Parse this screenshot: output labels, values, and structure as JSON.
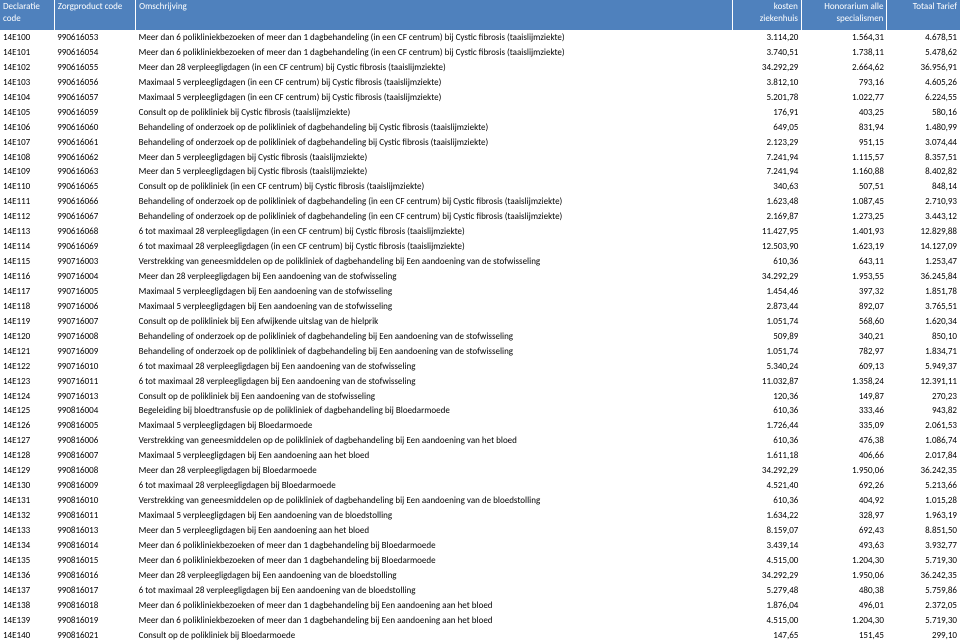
{
  "table": {
    "header_bg": "#4f81bd",
    "header_fg": "#ffffff",
    "columns": [
      {
        "key": "code",
        "label_line1": "Declaratie",
        "label_line2": "code"
      },
      {
        "key": "zp",
        "label_line1": "Zorgproduct code",
        "label_line2": ""
      },
      {
        "key": "desc",
        "label_line1": "Omschrijving",
        "label_line2": ""
      },
      {
        "key": "cost",
        "label_line1": "kosten",
        "label_line2": "ziekenhuis"
      },
      {
        "key": "hon",
        "label_line1": "Honorarium alle",
        "label_line2": "specialismen"
      },
      {
        "key": "tot",
        "label_line1": "Totaal Tarief",
        "label_line2": ""
      }
    ],
    "rows": [
      [
        "14E100",
        "990616053",
        "Meer dan 6 polikliniekbezoeken of meer dan 1 dagbehandeling (in een CF centrum) bij Cystic fibrosis (taaislijmziekte)",
        "3.114,20",
        "1.564,31",
        "4.678,51"
      ],
      [
        "14E101",
        "990616054",
        "Meer dan 6 polikliniekbezoeken of meer dan 1 dagbehandeling (in een CF centrum) bij Cystic fibrosis (taaislijmziekte)",
        "3.740,51",
        "1.738,11",
        "5.478,62"
      ],
      [
        "14E102",
        "990616055",
        "Meer dan 28 verpleegligdagen (in een CF centrum) bij Cystic fibrosis (taaislijmziekte)",
        "34.292,29",
        "2.664,62",
        "36.956,91"
      ],
      [
        "14E103",
        "990616056",
        "Maximaal 5 verpleegligdagen (in een CF centrum) bij Cystic fibrosis (taaislijmziekte)",
        "3.812,10",
        "793,16",
        "4.605,26"
      ],
      [
        "14E104",
        "990616057",
        "Maximaal 5 verpleegligdagen (in een CF centrum) bij Cystic fibrosis (taaislijmziekte)",
        "5.201,78",
        "1.022,77",
        "6.224,55"
      ],
      [
        "14E105",
        "990616059",
        "Consult op de polikliniek bij Cystic fibrosis (taaislijmziekte)",
        "176,91",
        "403,25",
        "580,16"
      ],
      [
        "14E106",
        "990616060",
        "Behandeling of onderzoek op de polikliniek of dagbehandeling bij Cystic fibrosis (taaislijmziekte)",
        "649,05",
        "831,94",
        "1.480,99"
      ],
      [
        "14E107",
        "990616061",
        "Behandeling of onderzoek op de polikliniek of dagbehandeling bij Cystic fibrosis (taaislijmziekte)",
        "2.123,29",
        "951,15",
        "3.074,44"
      ],
      [
        "14E108",
        "990616062",
        "Meer dan 5 verpleegligdagen bij Cystic fibrosis (taaislijmziekte)",
        "7.241,94",
        "1.115,57",
        "8.357,51"
      ],
      [
        "14E109",
        "990616063",
        "Meer dan 5 verpleegligdagen bij Cystic fibrosis (taaislijmziekte)",
        "7.241,94",
        "1.160,88",
        "8.402,82"
      ],
      [
        "14E110",
        "990616065",
        "Consult op de polikliniek (in een CF centrum) bij Cystic fibrosis (taaislijmziekte)",
        "340,63",
        "507,51",
        "848,14"
      ],
      [
        "14E111",
        "990616066",
        "Behandeling of onderzoek op de polikliniek of dagbehandeling (in een CF centrum) bij Cystic fibrosis (taaislijmziekte)",
        "1.623,48",
        "1.087,45",
        "2.710,93"
      ],
      [
        "14E112",
        "990616067",
        "Behandeling of onderzoek op de polikliniek of dagbehandeling (in een CF centrum) bij Cystic fibrosis (taaislijmziekte)",
        "2.169,87",
        "1.273,25",
        "3.443,12"
      ],
      [
        "14E113",
        "990616068",
        "6 tot maximaal 28 verpleegligdagen (in een CF centrum) bij Cystic fibrosis (taaislijmziekte)",
        "11.427,95",
        "1.401,93",
        "12.829,88"
      ],
      [
        "14E114",
        "990616069",
        "6 tot maximaal 28 verpleegligdagen (in een CF centrum) bij Cystic fibrosis (taaislijmziekte)",
        "12.503,90",
        "1.623,19",
        "14.127,09"
      ],
      [
        "14E115",
        "990716003",
        "Verstrekking van geneesmiddelen op de polikliniek of dagbehandeling bij Een aandoening van de stofwisseling",
        "610,36",
        "643,11",
        "1.253,47"
      ],
      [
        "14E116",
        "990716004",
        "Meer dan 28 verpleegligdagen bij Een aandoening van de stofwisseling",
        "34.292,29",
        "1.953,55",
        "36.245,84"
      ],
      [
        "14E117",
        "990716005",
        "Maximaal 5 verpleegligdagen bij Een aandoening van de stofwisseling",
        "1.454,46",
        "397,32",
        "1.851,78"
      ],
      [
        "14E118",
        "990716006",
        "Maximaal 5 verpleegligdagen bij Een aandoening van de stofwisseling",
        "2.873,44",
        "892,07",
        "3.765,51"
      ],
      [
        "14E119",
        "990716007",
        "Consult op de polikliniek bij Een afwijkende uitslag van de hielprik",
        "1.051,74",
        "568,60",
        "1.620,34"
      ],
      [
        "14E120",
        "990716008",
        "Behandeling of onderzoek op de polikliniek of dagbehandeling bij Een aandoening van de stofwisseling",
        "509,89",
        "340,21",
        "850,10"
      ],
      [
        "14E121",
        "990716009",
        "Behandeling of onderzoek op de polikliniek of dagbehandeling bij Een aandoening van de stofwisseling",
        "1.051,74",
        "782,97",
        "1.834,71"
      ],
      [
        "14E122",
        "990716010",
        "6 tot maximaal 28 verpleegligdagen bij Een aandoening van de stofwisseling",
        "5.340,24",
        "609,13",
        "5.949,37"
      ],
      [
        "14E123",
        "990716011",
        "6 tot maximaal 28 verpleegligdagen bij Een aandoening van de stofwisseling",
        "11.032,87",
        "1.358,24",
        "12.391,11"
      ],
      [
        "14E124",
        "990716013",
        "Consult op de polikliniek bij Een aandoening van de stofwisseling",
        "120,36",
        "149,87",
        "270,23"
      ],
      [
        "14E125",
        "990816004",
        "Begeleiding bij bloedtransfusie op de polikliniek of dagbehandeling bij Bloedarmoede",
        "610,36",
        "333,46",
        "943,82"
      ],
      [
        "14E126",
        "990816005",
        "Maximaal 5 verpleegligdagen bij Bloedarmoede",
        "1.726,44",
        "335,09",
        "2.061,53"
      ],
      [
        "14E127",
        "990816006",
        "Verstrekking van geneesmiddelen op de polikliniek of dagbehandeling bij Een aandoening van het bloed",
        "610,36",
        "476,38",
        "1.086,74"
      ],
      [
        "14E128",
        "990816007",
        "Maximaal 5 verpleegligdagen bij Een aandoening aan het bloed",
        "1.611,18",
        "406,66",
        "2.017,84"
      ],
      [
        "14E129",
        "990816008",
        "Meer dan 28 verpleegligdagen bij Bloedarmoede",
        "34.292,29",
        "1.950,06",
        "36.242,35"
      ],
      [
        "14E130",
        "990816009",
        "6 tot maximaal 28 verpleegligdagen bij Bloedarmoede",
        "4.521,40",
        "692,26",
        "5.213,66"
      ],
      [
        "14E131",
        "990816010",
        "Verstrekking van geneesmiddelen op de polikliniek of dagbehandeling bij Een aandoening van de bloedstolling",
        "610,36",
        "404,92",
        "1.015,28"
      ],
      [
        "14E132",
        "990816011",
        "Maximaal 5 verpleegligdagen bij Een aandoening van de bloedstolling",
        "1.634,22",
        "328,97",
        "1.963,19"
      ],
      [
        "14E133",
        "990816013",
        "Meer dan 5 verpleegligdagen bij Een aandoening aan het bloed",
        "8.159,07",
        "692,43",
        "8.851,50"
      ],
      [
        "14E134",
        "990816014",
        "Meer dan 6 polikliniekbezoeken of meer dan 1 dagbehandeling bij Bloedarmoede",
        "3.439,14",
        "493,63",
        "3.932,77"
      ],
      [
        "14E135",
        "990816015",
        "Meer dan 6 polikliniekbezoeken of meer dan 1 dagbehandeling bij Bloedarmoede",
        "4.515,00",
        "1.204,30",
        "5.719,30"
      ],
      [
        "14E136",
        "990816016",
        "Meer dan 28 verpleegligdagen bij Een aandoening van de bloedstolling",
        "34.292,29",
        "1.950,06",
        "36.242,35"
      ],
      [
        "14E137",
        "990816017",
        "6 tot maximaal 28 verpleegligdagen bij Een aandoening van de bloedstolling",
        "5.279,48",
        "480,38",
        "5.759,86"
      ],
      [
        "14E138",
        "990816018",
        "Meer dan 6 polikliniekbezoeken of meer dan 1 dagbehandeling bij Een aandoening aan het bloed",
        "1.876,04",
        "496,01",
        "2.372,05"
      ],
      [
        "14E139",
        "990816019",
        "Meer dan 6 polikliniekbezoeken of meer dan 1 dagbehandeling bij Een aandoening aan het bloed",
        "4.515,00",
        "1.204,30",
        "5.719,30"
      ],
      [
        "14E140",
        "990816021",
        "Consult op de polikliniek bij Bloedarmoede",
        "147,65",
        "151,45",
        "299,10"
      ]
    ]
  }
}
